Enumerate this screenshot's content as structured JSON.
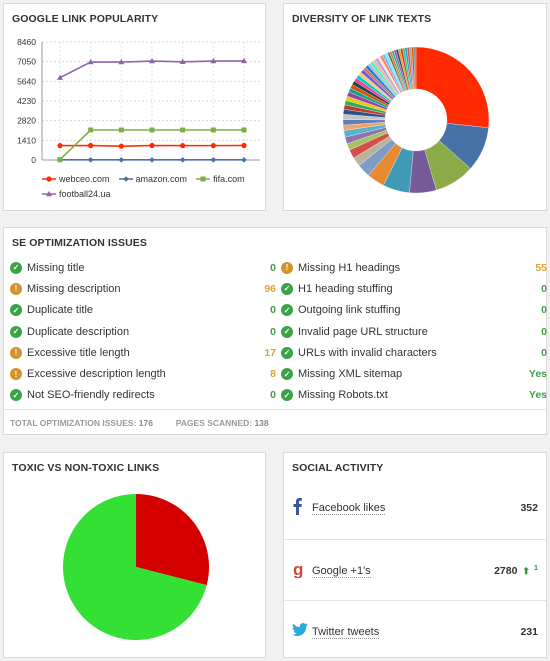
{
  "popularity": {
    "title": "GOOGLE LINK POPULARITY",
    "chart_data": {
      "type": "line",
      "y_ticks": [
        0,
        1410,
        2820,
        4230,
        5640,
        7050,
        8460
      ],
      "ylim": [
        0,
        8460
      ],
      "x_count": 7,
      "grid": true,
      "legend_position": "bottom",
      "series": [
        {
          "name": "webceo.com",
          "color": "#ff2a00",
          "marker": "circle",
          "values": [
            1030,
            1040,
            990,
            1040,
            1030,
            1030,
            1040
          ]
        },
        {
          "name": "amazon.com",
          "color": "#4a6fa5",
          "marker": "diamond",
          "values": [
            10,
            10,
            10,
            10,
            10,
            10,
            10
          ]
        },
        {
          "name": "fifa.com",
          "color": "#7fae45",
          "marker": "square",
          "values": [
            30,
            2150,
            2150,
            2150,
            2150,
            2150,
            2150
          ]
        },
        {
          "name": "football24.ua",
          "color": "#8a68a8",
          "marker": "triangle",
          "values": [
            5900,
            7020,
            7020,
            7090,
            7040,
            7090,
            7100
          ]
        }
      ]
    }
  },
  "diversity": {
    "title": "DIVERSITY OF LINK TEXTS",
    "chart_data": {
      "type": "pie",
      "donut": true,
      "values": [
        27,
        10,
        9,
        6,
        6,
        4,
        3,
        2,
        2,
        1.5,
        1.5,
        1.5,
        1.2,
        1.2,
        1.2,
        1.1,
        1,
        1,
        1,
        1,
        0.9,
        0.9,
        0.9,
        0.8,
        0.8,
        0.8,
        0.8,
        0.7,
        0.7,
        0.7,
        0.7,
        0.7,
        0.6,
        0.6,
        0.6,
        0.6,
        0.6,
        0.5,
        0.5,
        0.5,
        0.5,
        0.5,
        0.5,
        0.5,
        0.5,
        0.5,
        0.5,
        0.5,
        0.5,
        0.5
      ],
      "colors": [
        "#ff2a00",
        "#4672a8",
        "#8aab47",
        "#765b9a",
        "#3f9bb5",
        "#e68a33",
        "#7f9cc7",
        "#b9b39c",
        "#d64e4a",
        "#a4c263",
        "#8e73ad",
        "#56b3cb",
        "#f0a660",
        "#5d7fba",
        "#c3c3c3",
        "#2f4f86",
        "#c0392b",
        "#27ae60",
        "#f1c40f",
        "#8e44ad",
        "#16a085",
        "#d35400",
        "#2c3e50",
        "#e84393",
        "#00cec9",
        "#fdcb6e",
        "#6c5ce7",
        "#e17055",
        "#0984e3",
        "#b2bec3",
        "#55efc4",
        "#fab1a0",
        "#a29bfe",
        "#ffeaa7",
        "#ff7675",
        "#74b9ff",
        "#81ecec",
        "#636e72",
        "#e67e22",
        "#1abc9c",
        "#9b59b6",
        "#34495e",
        "#f39c12",
        "#c0392b",
        "#2ecc71",
        "#3498db",
        "#e74c3c",
        "#95a5a6",
        "#d35400",
        "#7f8c8d"
      ]
    }
  },
  "issues": {
    "title": "SE OPTIMIZATION ISSUES",
    "left": [
      {
        "label": "Missing title",
        "value": "0",
        "status": "ok"
      },
      {
        "label": "Missing description",
        "value": "96",
        "status": "warn"
      },
      {
        "label": "Duplicate title",
        "value": "0",
        "status": "ok"
      },
      {
        "label": "Duplicate description",
        "value": "0",
        "status": "ok"
      },
      {
        "label": "Excessive title length",
        "value": "17",
        "status": "warn"
      },
      {
        "label": "Excessive description length",
        "value": "8",
        "status": "warn"
      },
      {
        "label": "Not SEO-friendly redirects",
        "value": "0",
        "status": "ok"
      }
    ],
    "right": [
      {
        "label": "Missing H1 headings",
        "value": "55",
        "status": "warn"
      },
      {
        "label": "H1 heading stuffing",
        "value": "0",
        "status": "ok"
      },
      {
        "label": "Outgoing link stuffing",
        "value": "0",
        "status": "ok"
      },
      {
        "label": "Invalid page URL structure",
        "value": "0",
        "status": "ok"
      },
      {
        "label": "URLs with invalid characters",
        "value": "0",
        "status": "ok"
      },
      {
        "label": "Missing XML sitemap",
        "value": "Yes",
        "status": "ok"
      },
      {
        "label": "Missing Robots.txt",
        "value": "Yes",
        "status": "ok"
      }
    ],
    "footer": {
      "total_label": "TOTAL OPTIMIZATION ISSUES:",
      "total_value": "176",
      "pages_label": "PAGES SCANNED:",
      "pages_value": "138"
    }
  },
  "toxic": {
    "title": "TOXIC VS NON-TOXIC LINKS",
    "chart_data": {
      "type": "pie",
      "values": [
        29,
        71
      ],
      "colors": [
        "#d40000",
        "#33e033"
      ]
    }
  },
  "social": {
    "title": "SOCIAL ACTIVITY",
    "rows": [
      {
        "label": "Facebook likes",
        "value": "352",
        "icon": "facebook-icon",
        "delta": ""
      },
      {
        "label": "Google +1's",
        "value": "2780",
        "icon": "google-icon",
        "delta": "1"
      },
      {
        "label": "Twitter tweets",
        "value": "231",
        "icon": "twitter-icon",
        "delta": ""
      }
    ]
  }
}
